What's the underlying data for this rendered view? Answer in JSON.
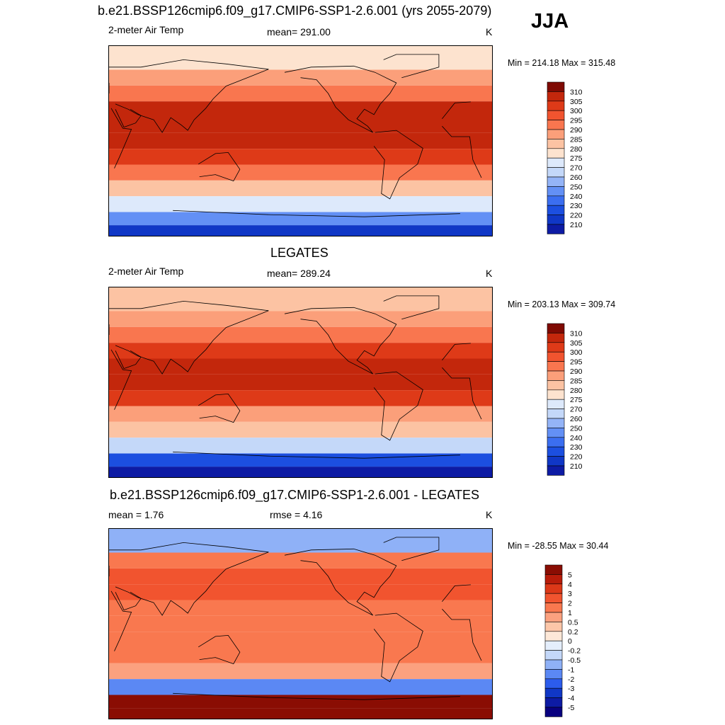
{
  "figure": {
    "title": "b.e21.BSSP126cmip6.f09_g17.CMIP6-SSP1-2.6.001 (yrs 2055-2079)",
    "season": "JJA"
  },
  "palettes": {
    "temp": [
      "#08007f",
      "#0d1ba4",
      "#1037c6",
      "#1c4fe0",
      "#3b6ef0",
      "#6390f5",
      "#94b4f7",
      "#c4d8f9",
      "#dde9fb",
      "#fde3cf",
      "#fcc3a3",
      "#fb9f7a",
      "#f9764f",
      "#f1542f",
      "#de3a18",
      "#c3270c",
      "#9a1407",
      "#7f0a03"
    ],
    "diff": [
      "#08007f",
      "#0d1ba4",
      "#1037c6",
      "#2c5cec",
      "#5b88f4",
      "#8fb1f7",
      "#c4d8f9",
      "#e4eefc",
      "#fde8d8",
      "#fcc6a8",
      "#fba17f",
      "#f9784f",
      "#f1542f",
      "#dc3818",
      "#b81c0a",
      "#8a0d03"
    ]
  },
  "panels": [
    {
      "id": "model",
      "heading": "",
      "left_label": "2-meter Air Temp",
      "center_label": "mean= 291.00",
      "right_label": "K",
      "range_text": "Min = 214.18 Max = 315.48",
      "stats": {
        "mean": 291.0,
        "min": 214.18,
        "max": 315.48
      },
      "colorbar": {
        "levels": [
          "310",
          "305",
          "300",
          "295",
          "290",
          "285",
          "280",
          "275",
          "270",
          "260",
          "250",
          "240",
          "230",
          "220",
          "210"
        ],
        "palette": "temp"
      }
    },
    {
      "id": "obs",
      "heading": "LEGATES",
      "left_label": "2-meter Air Temp",
      "center_label": "mean= 289.24",
      "right_label": "K",
      "range_text": "Min = 203.13 Max = 309.74",
      "stats": {
        "mean": 289.24,
        "min": 203.13,
        "max": 309.74
      },
      "colorbar": {
        "levels": [
          "310",
          "305",
          "300",
          "295",
          "290",
          "285",
          "280",
          "275",
          "270",
          "260",
          "250",
          "240",
          "230",
          "220",
          "210"
        ],
        "palette": "temp"
      }
    },
    {
      "id": "diff",
      "heading": "b.e21.BSSP126cmip6.f09_g17.CMIP6-SSP1-2.6.001 - LEGATES",
      "left_label": "mean =   1.76",
      "center_label": "rmse =   4.16",
      "right_label": "K",
      "range_text": "Min = -28.55 Max =  30.44",
      "stats": {
        "mean": 1.76,
        "rmse": 4.16,
        "min": -28.55,
        "max": 30.44
      },
      "colorbar": {
        "levels": [
          "5",
          "4",
          "3",
          "2",
          "1",
          "0.5",
          "0.2",
          "0",
          "-0.2",
          "-0.5",
          "-1",
          "-2",
          "-3",
          "-4",
          "-5"
        ],
        "palette": "diff"
      }
    }
  ],
  "chart_data": [
    {
      "type": "heatmap",
      "title": "2-meter Air Temp",
      "units": "K",
      "mean": 291.0,
      "min": 214.18,
      "max": 315.48,
      "color_levels": [
        210,
        220,
        230,
        240,
        250,
        260,
        270,
        275,
        280,
        285,
        290,
        295,
        300,
        305,
        310
      ],
      "zonal_profile": {
        "lat": [
          75,
          60,
          45,
          30,
          15,
          0,
          -15,
          -30,
          -45,
          -60,
          -75,
          -85
        ],
        "value": [
          276,
          285,
          293,
          300,
          302,
          301,
          297,
          290,
          282,
          272,
          243,
          225
        ]
      }
    },
    {
      "type": "heatmap",
      "title": "LEGATES",
      "units": "K",
      "mean": 289.24,
      "min": 203.13,
      "max": 309.74,
      "color_levels": [
        210,
        220,
        230,
        240,
        250,
        260,
        270,
        275,
        280,
        285,
        290,
        295,
        300,
        305,
        310
      ],
      "zonal_profile": {
        "lat": [
          75,
          60,
          45,
          30,
          15,
          0,
          -15,
          -30,
          -45,
          -60,
          -75,
          -85
        ],
        "value": [
          280,
          286,
          292,
          298,
          301,
          300,
          296,
          289,
          281,
          263,
          235,
          218
        ]
      }
    },
    {
      "type": "heatmap",
      "title": "b.e21.BSSP126cmip6.f09_g17.CMIP6-SSP1-2.6.001 - LEGATES",
      "units": "K",
      "mean": 1.76,
      "rmse": 4.16,
      "min": -28.55,
      "max": 30.44,
      "color_levels": [
        -5,
        -4,
        -3,
        -2,
        -1,
        -0.5,
        -0.2,
        0,
        0.2,
        0.5,
        1,
        2,
        3,
        4,
        5
      ],
      "zonal_profile": {
        "lat": [
          75,
          60,
          45,
          30,
          15,
          0,
          -15,
          -30,
          -45,
          -60,
          -75,
          -85
        ],
        "value": [
          -1,
          1.5,
          2,
          2,
          1.5,
          1.5,
          1.5,
          1,
          0.5,
          -2,
          6,
          6
        ]
      }
    }
  ]
}
